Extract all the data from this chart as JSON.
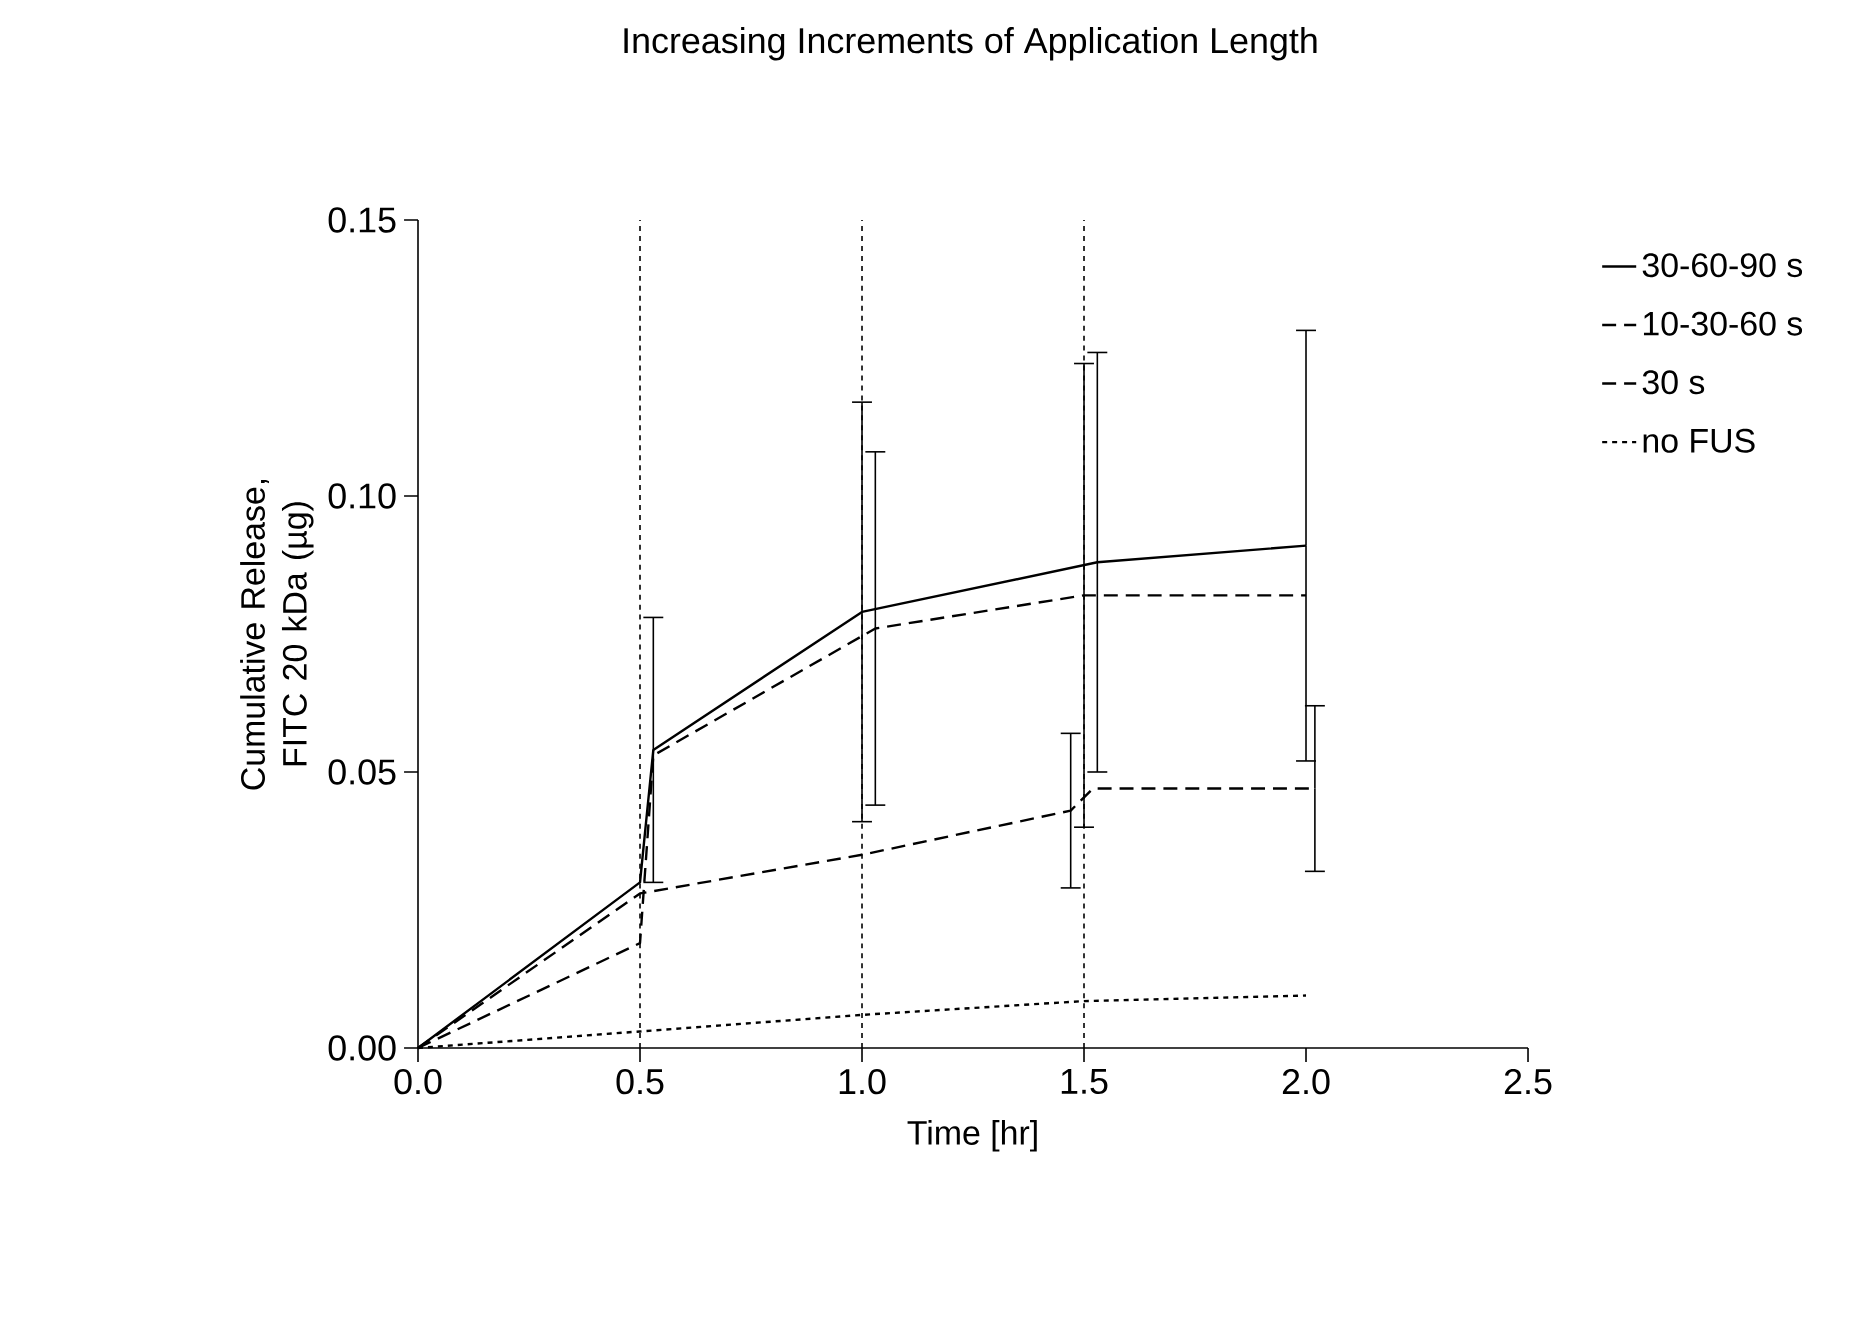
{
  "chart_data": {
    "type": "line",
    "title": "Increasing Increments of Application Length",
    "xlabel": "Time [hr]",
    "ylabel": "Cumulative Release, FITC 20 kDa (µg)",
    "xlim": [
      0,
      2.5
    ],
    "ylim": [
      0,
      0.15
    ],
    "xticks": [
      {
        "value": 0,
        "label": "0.0"
      },
      {
        "value": 0.5,
        "label": "0.5"
      },
      {
        "value": 1,
        "label": "1.0"
      },
      {
        "value": 1.5,
        "label": "1.5"
      },
      {
        "value": 2,
        "label": "2.0"
      },
      {
        "value": 2.5,
        "label": "2.5"
      }
    ],
    "yticks": [
      {
        "value": 0,
        "label": "0.00"
      },
      {
        "value": 0.05,
        "label": "0.05"
      },
      {
        "value": 0.1,
        "label": "0.10"
      },
      {
        "value": 0.15,
        "label": "0.15"
      }
    ],
    "series": [
      {
        "name": "30-60-90 s",
        "color": "#000000",
        "line_style": "solid",
        "x": [
          0,
          0.5,
          0.53,
          1.0,
          1.53,
          2.0
        ],
        "values": [
          0,
          0.03,
          0.054,
          0.079,
          0.088,
          0.091
        ],
        "errors": [
          null,
          null,
          0.024,
          0.038,
          0.038,
          0.039
        ]
      },
      {
        "name": "10-30-60 s",
        "color": "#000000",
        "line_style": "dashed",
        "x": [
          0,
          0.5,
          0.53,
          1.03,
          1.5,
          2.0
        ],
        "values": [
          0,
          0.019,
          0.053,
          0.076,
          0.082,
          0.082
        ],
        "errors": [
          null,
          null,
          null,
          0.032,
          0.042,
          null
        ]
      },
      {
        "name": "30 s",
        "color": "#000000",
        "line_style": "dashed",
        "x": [
          0,
          0.5,
          1.0,
          1.47,
          1.52,
          2.02
        ],
        "values": [
          0,
          0.028,
          0.035,
          0.043,
          0.047,
          0.047
        ],
        "errors": [
          null,
          null,
          null,
          0.014,
          null,
          0.015
        ]
      },
      {
        "name": "no FUS",
        "color": "#000000",
        "line_style": "dotted",
        "x": [
          0,
          0.5,
          1.0,
          1.5,
          2.0
        ],
        "values": [
          0,
          0.003,
          0.006,
          0.0085,
          0.0095
        ]
      }
    ],
    "ref_lines": [
      {
        "axis": "x",
        "value": 0.5,
        "line_style": "dotted"
      },
      {
        "axis": "x",
        "value": 1.0,
        "line_style": "dotted"
      },
      {
        "axis": "x",
        "value": 1.5,
        "line_style": "dotted"
      }
    ],
    "legend": "right",
    "grid": false,
    "marker": "none"
  }
}
